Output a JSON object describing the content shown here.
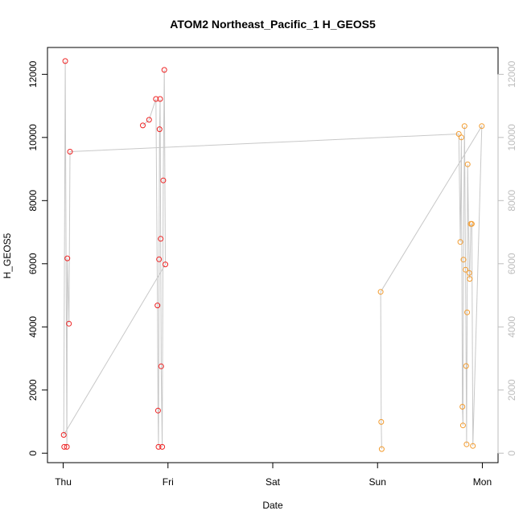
{
  "chart_data": {
    "type": "scatter",
    "title": "ATOM2 Northeast_Pacific_1 H_GEOS5",
    "xlabel": "Date",
    "ylabel": "H_GEOS5",
    "x_ticks": [
      {
        "label": "Thu",
        "value": 0
      },
      {
        "label": "Fri",
        "value": 1
      },
      {
        "label": "Sat",
        "value": 2
      },
      {
        "label": "Sun",
        "value": 3
      },
      {
        "label": "Mon",
        "value": 4
      }
    ],
    "y_ticks": [
      0,
      2000,
      4000,
      6000,
      8000,
      10000,
      12000
    ],
    "y_ticks_right": [
      0,
      2000,
      4000,
      6000,
      8000,
      10000,
      12000
    ],
    "xlim": [
      -0.15,
      4.15
    ],
    "ylim": [
      -300,
      12850
    ],
    "line_color": "#c8c8c8",
    "colors": {
      "red": "#ee2222",
      "orange": "#f29b2e",
      "axis": "#000000",
      "right_axis": "#bdbdbd"
    },
    "points": [
      {
        "x": 0.005,
        "y": 580,
        "c": "red"
      },
      {
        "x": 0.01,
        "y": 200,
        "c": "red"
      },
      {
        "x": 0.02,
        "y": 12420,
        "c": "red"
      },
      {
        "x": 0.035,
        "y": 200,
        "c": "red"
      },
      {
        "x": 0.04,
        "y": 6170,
        "c": "red"
      },
      {
        "x": 0.055,
        "y": 4100,
        "c": "red"
      },
      {
        "x": 0.065,
        "y": 9550,
        "c": "red"
      },
      {
        "x": 0.76,
        "y": 10380,
        "c": "red"
      },
      {
        "x": 0.82,
        "y": 10560,
        "c": "red"
      },
      {
        "x": 0.885,
        "y": 11220,
        "c": "red"
      },
      {
        "x": 0.9,
        "y": 4680,
        "c": "red"
      },
      {
        "x": 0.905,
        "y": 1350,
        "c": "red"
      },
      {
        "x": 0.91,
        "y": 200,
        "c": "red"
      },
      {
        "x": 0.915,
        "y": 6140,
        "c": "red"
      },
      {
        "x": 0.92,
        "y": 10260,
        "c": "red"
      },
      {
        "x": 0.925,
        "y": 11220,
        "c": "red"
      },
      {
        "x": 0.93,
        "y": 6790,
        "c": "red"
      },
      {
        "x": 0.935,
        "y": 2750,
        "c": "red"
      },
      {
        "x": 0.945,
        "y": 200,
        "c": "red"
      },
      {
        "x": 0.955,
        "y": 8640,
        "c": "red"
      },
      {
        "x": 0.965,
        "y": 12140,
        "c": "red"
      },
      {
        "x": 0.975,
        "y": 5980,
        "c": "red"
      },
      {
        "x": 3.03,
        "y": 5110,
        "c": "orange"
      },
      {
        "x": 3.035,
        "y": 990,
        "c": "orange"
      },
      {
        "x": 3.04,
        "y": 130,
        "c": "orange"
      },
      {
        "x": 3.775,
        "y": 10110,
        "c": "orange"
      },
      {
        "x": 3.79,
        "y": 6690,
        "c": "orange"
      },
      {
        "x": 3.8,
        "y": 10000,
        "c": "orange"
      },
      {
        "x": 3.81,
        "y": 1470,
        "c": "orange"
      },
      {
        "x": 3.815,
        "y": 880,
        "c": "orange"
      },
      {
        "x": 3.82,
        "y": 6130,
        "c": "orange"
      },
      {
        "x": 3.83,
        "y": 10360,
        "c": "orange"
      },
      {
        "x": 3.84,
        "y": 5810,
        "c": "orange"
      },
      {
        "x": 3.845,
        "y": 2760,
        "c": "orange"
      },
      {
        "x": 3.85,
        "y": 280,
        "c": "orange"
      },
      {
        "x": 3.855,
        "y": 4460,
        "c": "orange"
      },
      {
        "x": 3.86,
        "y": 9150,
        "c": "orange"
      },
      {
        "x": 3.875,
        "y": 5710,
        "c": "orange"
      },
      {
        "x": 3.88,
        "y": 5520,
        "c": "orange"
      },
      {
        "x": 3.89,
        "y": 7260,
        "c": "orange"
      },
      {
        "x": 3.9,
        "y": 7260,
        "c": "orange"
      },
      {
        "x": 3.91,
        "y": 230,
        "c": "orange"
      },
      {
        "x": 3.995,
        "y": 10360,
        "c": "orange"
      }
    ],
    "connect_order": [
      [
        0.975,
        5980
      ],
      [
        0.005,
        580
      ],
      [
        0.02,
        12420
      ],
      [
        0.035,
        200
      ],
      [
        0.04,
        6170
      ],
      [
        0.055,
        4100
      ],
      [
        0.065,
        9550
      ],
      [
        3.775,
        10110
      ],
      [
        3.79,
        6690
      ],
      [
        3.8,
        10000
      ],
      [
        3.81,
        1470
      ],
      [
        3.815,
        880
      ],
      [
        3.82,
        6130
      ],
      [
        3.83,
        10360
      ],
      [
        3.84,
        5810
      ],
      [
        3.845,
        2760
      ],
      [
        3.85,
        280
      ],
      [
        3.855,
        4460
      ],
      [
        3.86,
        9150
      ],
      [
        3.875,
        5710
      ],
      [
        3.88,
        5520
      ],
      [
        3.89,
        7260
      ],
      [
        3.9,
        7260
      ],
      [
        3.91,
        230
      ],
      [
        3.995,
        10360
      ],
      [
        3.03,
        5110
      ],
      [
        3.035,
        990
      ],
      [
        3.04,
        130
      ]
    ],
    "connect_order_fri": [
      [
        0.76,
        10380
      ],
      [
        0.82,
        10560
      ],
      [
        0.885,
        11220
      ],
      [
        0.9,
        4680
      ],
      [
        0.905,
        1350
      ],
      [
        0.91,
        200
      ],
      [
        0.915,
        6140
      ],
      [
        0.92,
        10260
      ],
      [
        0.925,
        11220
      ],
      [
        0.93,
        6790
      ],
      [
        0.935,
        2750
      ],
      [
        0.945,
        200
      ],
      [
        0.955,
        8640
      ],
      [
        0.965,
        12140
      ],
      [
        0.975,
        5980
      ]
    ]
  }
}
